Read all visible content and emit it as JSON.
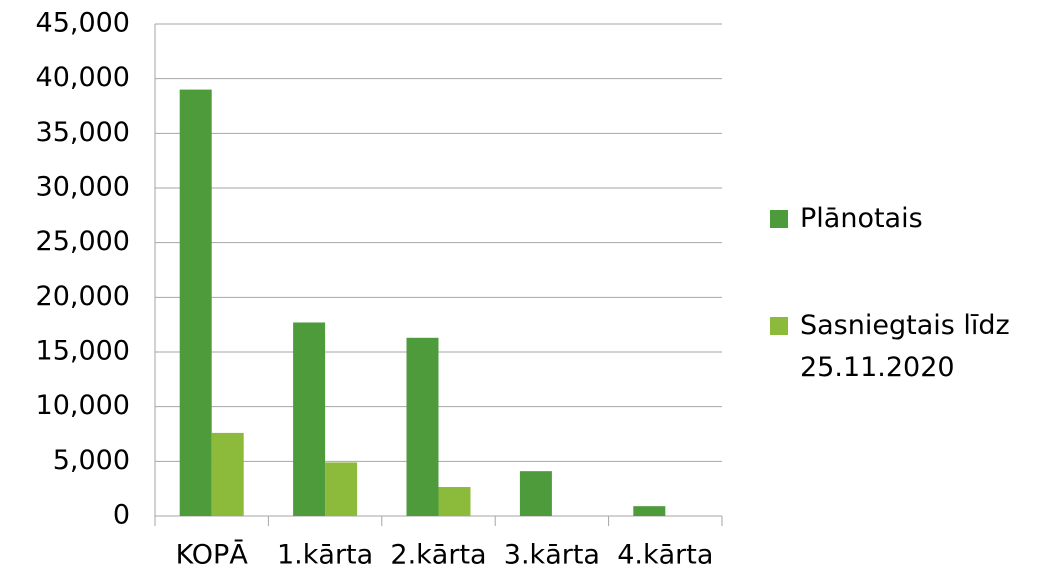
{
  "chart_data": {
    "type": "bar",
    "categories": [
      "KOPĀ",
      "1.kārta",
      "2.kārta",
      "3.kārta",
      "4.kārta"
    ],
    "series": [
      {
        "name": "Plānotais",
        "color": "#4e9b3c",
        "values": [
          39000,
          17700,
          16300,
          4100,
          900
        ]
      },
      {
        "name": "Sasniegtais līdz 25.11.2020",
        "color": "#8cba3a",
        "values": [
          7600,
          4900,
          2650,
          0,
          0
        ]
      }
    ],
    "ylim": [
      0,
      45000
    ],
    "yticks": [
      0,
      {
        "value": 5000,
        "label": "5,000"
      },
      {
        "value": 10000,
        "label": "10,000"
      },
      {
        "value": 15000,
        "label": "15,000"
      },
      {
        "value": 20000,
        "label": "20,000"
      },
      {
        "value": 25000,
        "label": "25,000"
      },
      {
        "value": 30000,
        "label": "30,000"
      },
      {
        "value": 35000,
        "label": "35,000"
      },
      {
        "value": 40000,
        "label": "40,000"
      },
      {
        "value": 45000,
        "label": "45,000"
      }
    ],
    "grid": true,
    "legend": "right"
  }
}
